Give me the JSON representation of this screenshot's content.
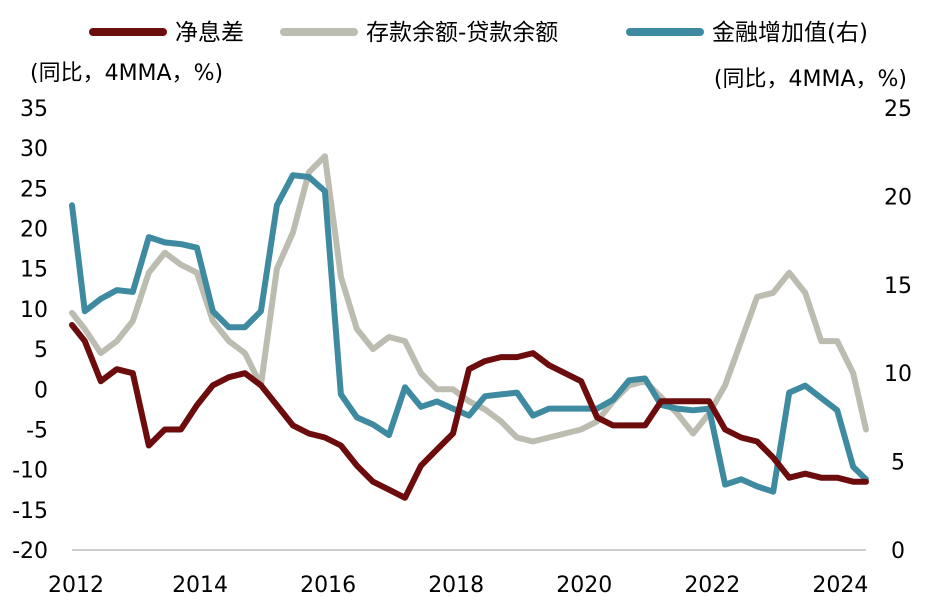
{
  "chart_data": {
    "type": "line",
    "legend": [
      {
        "name": "净息差",
        "color": "#6d0c0c"
      },
      {
        "name": "存款余额-贷款余额",
        "color": "#bdbcb0"
      },
      {
        "name": "金融增加值(右)",
        "color": "#3e8aa0"
      }
    ],
    "left_axis": {
      "unit_label": "(同比，4MMA，%)",
      "ylim": [
        -20,
        35
      ],
      "ticks": [
        35,
        30,
        25,
        20,
        15,
        10,
        5,
        0,
        -5,
        -10,
        -15,
        -20
      ]
    },
    "right_axis": {
      "unit_label": "(同比，4MMA，%)",
      "ylim": [
        0,
        25
      ],
      "ticks": [
        25,
        20,
        15,
        10,
        5,
        0
      ]
    },
    "x_axis": {
      "xlim": [
        2012,
        2024.4
      ],
      "tick_values": [
        2012,
        2014,
        2016,
        2018,
        2020,
        2022,
        2024
      ],
      "tick_labels": [
        "2012",
        "2014",
        "2016",
        "2018",
        "2020",
        "2022",
        "2024"
      ]
    },
    "series": [
      {
        "name": "净息差",
        "axis": "left",
        "color": "#6d0c0c",
        "x": [
          2012.0,
          2012.2,
          2012.45,
          2012.7,
          2012.95,
          2013.2,
          2013.45,
          2013.7,
          2013.95,
          2014.2,
          2014.45,
          2014.7,
          2014.95,
          2015.2,
          2015.45,
          2015.7,
          2015.95,
          2016.2,
          2016.45,
          2016.7,
          2016.95,
          2017.2,
          2017.45,
          2017.7,
          2017.95,
          2018.2,
          2018.45,
          2018.7,
          2018.95,
          2019.2,
          2019.45,
          2019.7,
          2019.95,
          2020.2,
          2020.45,
          2020.7,
          2020.95,
          2021.2,
          2021.45,
          2021.7,
          2021.95,
          2022.2,
          2022.45,
          2022.7,
          2022.95,
          2023.2,
          2023.45,
          2023.7,
          2023.95,
          2024.2,
          2024.4
        ],
        "values": [
          8.0,
          6.0,
          1.0,
          2.5,
          2.0,
          -7.0,
          -5.0,
          -5.0,
          -2.0,
          0.5,
          1.5,
          2.0,
          0.5,
          -2.0,
          -4.5,
          -5.5,
          -6.0,
          -7.0,
          -9.5,
          -11.5,
          -12.5,
          -13.5,
          -9.5,
          -7.5,
          -5.5,
          2.5,
          3.5,
          4.0,
          4.0,
          4.5,
          3.0,
          2.0,
          1.0,
          -3.5,
          -4.5,
          -4.5,
          -4.5,
          -1.5,
          -1.5,
          -1.5,
          -1.5,
          -5.0,
          -6.0,
          -6.5,
          -8.5,
          -11.0,
          -10.5,
          -11.0,
          -11.0,
          -11.5,
          -11.5
        ]
      },
      {
        "name": "存款余额-贷款余额",
        "axis": "left",
        "color": "#bdbcb0",
        "x": [
          2012.0,
          2012.2,
          2012.45,
          2012.7,
          2012.95,
          2013.2,
          2013.45,
          2013.7,
          2013.95,
          2014.2,
          2014.45,
          2014.7,
          2014.95,
          2015.2,
          2015.45,
          2015.7,
          2015.95,
          2016.2,
          2016.45,
          2016.7,
          2016.95,
          2017.2,
          2017.45,
          2017.7,
          2017.95,
          2018.2,
          2018.45,
          2018.7,
          2018.95,
          2019.2,
          2019.45,
          2019.7,
          2019.95,
          2020.2,
          2020.45,
          2020.7,
          2020.95,
          2021.2,
          2021.45,
          2021.7,
          2021.95,
          2022.2,
          2022.45,
          2022.7,
          2022.95,
          2023.2,
          2023.45,
          2023.7,
          2023.95,
          2024.2,
          2024.4
        ],
        "values": [
          9.5,
          7.5,
          4.5,
          6.0,
          8.5,
          14.5,
          17.0,
          15.5,
          14.5,
          8.5,
          6.0,
          4.5,
          0.5,
          15.0,
          19.5,
          27.0,
          29.0,
          14.0,
          7.5,
          5.0,
          6.5,
          6.0,
          2.0,
          0.0,
          0.0,
          -1.5,
          -2.5,
          -4.0,
          -6.0,
          -6.5,
          -6.0,
          -5.5,
          -5.0,
          -4.0,
          -1.5,
          0.5,
          1.0,
          -1.0,
          -3.0,
          -5.5,
          -3.0,
          0.5,
          6.0,
          11.5,
          12.0,
          14.5,
          12.0,
          6.0,
          6.0,
          2.0,
          -5.0
        ]
      },
      {
        "name": "金融增加值(右)",
        "axis": "right",
        "color": "#3e8aa0",
        "x": [
          2012.0,
          2012.2,
          2012.45,
          2012.7,
          2012.95,
          2013.2,
          2013.45,
          2013.7,
          2013.95,
          2014.2,
          2014.45,
          2014.7,
          2014.95,
          2015.2,
          2015.45,
          2015.7,
          2015.95,
          2016.2,
          2016.45,
          2016.7,
          2016.95,
          2017.2,
          2017.45,
          2017.7,
          2017.95,
          2018.2,
          2018.45,
          2018.7,
          2018.95,
          2019.2,
          2019.45,
          2019.7,
          2019.95,
          2020.2,
          2020.45,
          2020.7,
          2020.95,
          2021.2,
          2021.45,
          2021.7,
          2021.95,
          2022.2,
          2022.45,
          2022.7,
          2022.95,
          2023.2,
          2023.45,
          2023.7,
          2023.95,
          2024.2,
          2024.4
        ],
        "values": [
          19.5,
          13.5,
          14.2,
          14.7,
          14.6,
          17.7,
          17.4,
          17.3,
          17.1,
          13.5,
          12.6,
          12.6,
          13.5,
          19.5,
          21.2,
          21.1,
          20.3,
          8.8,
          7.5,
          7.1,
          6.5,
          9.2,
          8.1,
          8.4,
          8.0,
          7.6,
          8.7,
          8.8,
          8.9,
          7.6,
          8.0,
          8.0,
          8.0,
          8.0,
          8.5,
          9.6,
          9.7,
          8.2,
          8.0,
          7.9,
          8.0,
          3.7,
          4.0,
          3.6,
          3.3,
          8.9,
          9.3,
          8.6,
          7.9,
          4.7,
          4.0
        ]
      }
    ]
  }
}
